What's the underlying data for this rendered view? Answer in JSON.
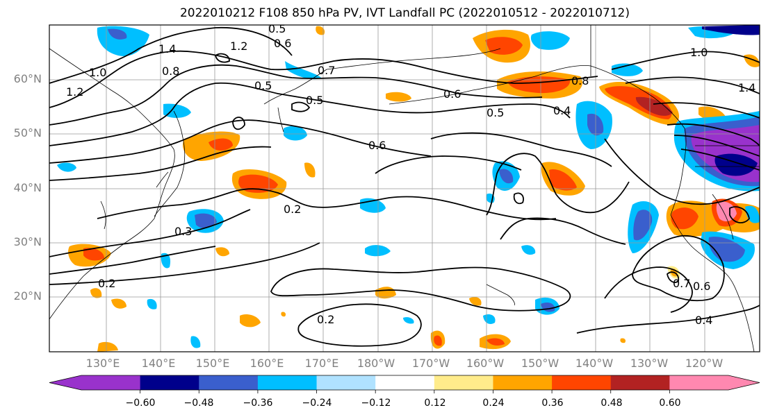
{
  "title": "2022010212 F108 850 hPa PV, IVT Landfall PC (2022010512 - 2022010712)",
  "lat_labels": [
    "60°N",
    "50°N",
    "40°N",
    "30°N",
    "20°N"
  ],
  "lon_labels": [
    "130°E",
    "140°E",
    "150°E",
    "160°E",
    "170°E",
    "180°W",
    "170°W",
    "160°W",
    "150°W",
    "140°W",
    "130°W",
    "120°W"
  ],
  "contour_labels": [
    "0.5",
    "0.6",
    "0.7",
    "0.5",
    "0.6",
    "0.5",
    "0.5",
    "0.6",
    "0.8",
    "1.0",
    "1.4",
    "1.2",
    "1.0",
    "0.8",
    "0.2",
    "0.3",
    "0.2",
    "0.2",
    "0.4",
    "0.6",
    "0.7",
    "1.4",
    "1.2",
    "0.4"
  ],
  "colorbar": {
    "colors": [
      "#9932cc",
      "#00008b",
      "#3a5fcd",
      "#00bfff",
      "#b0e2ff",
      "#ffffff",
      "#ffec8b",
      "#ffa500",
      "#ff4500",
      "#b22222",
      "#ff88b0"
    ],
    "tick_labels": [
      "−0.60",
      "−0.48",
      "−0.36",
      "−0.24",
      "−0.12",
      "0.12",
      "0.24",
      "0.36",
      "0.48",
      "0.60"
    ]
  }
}
